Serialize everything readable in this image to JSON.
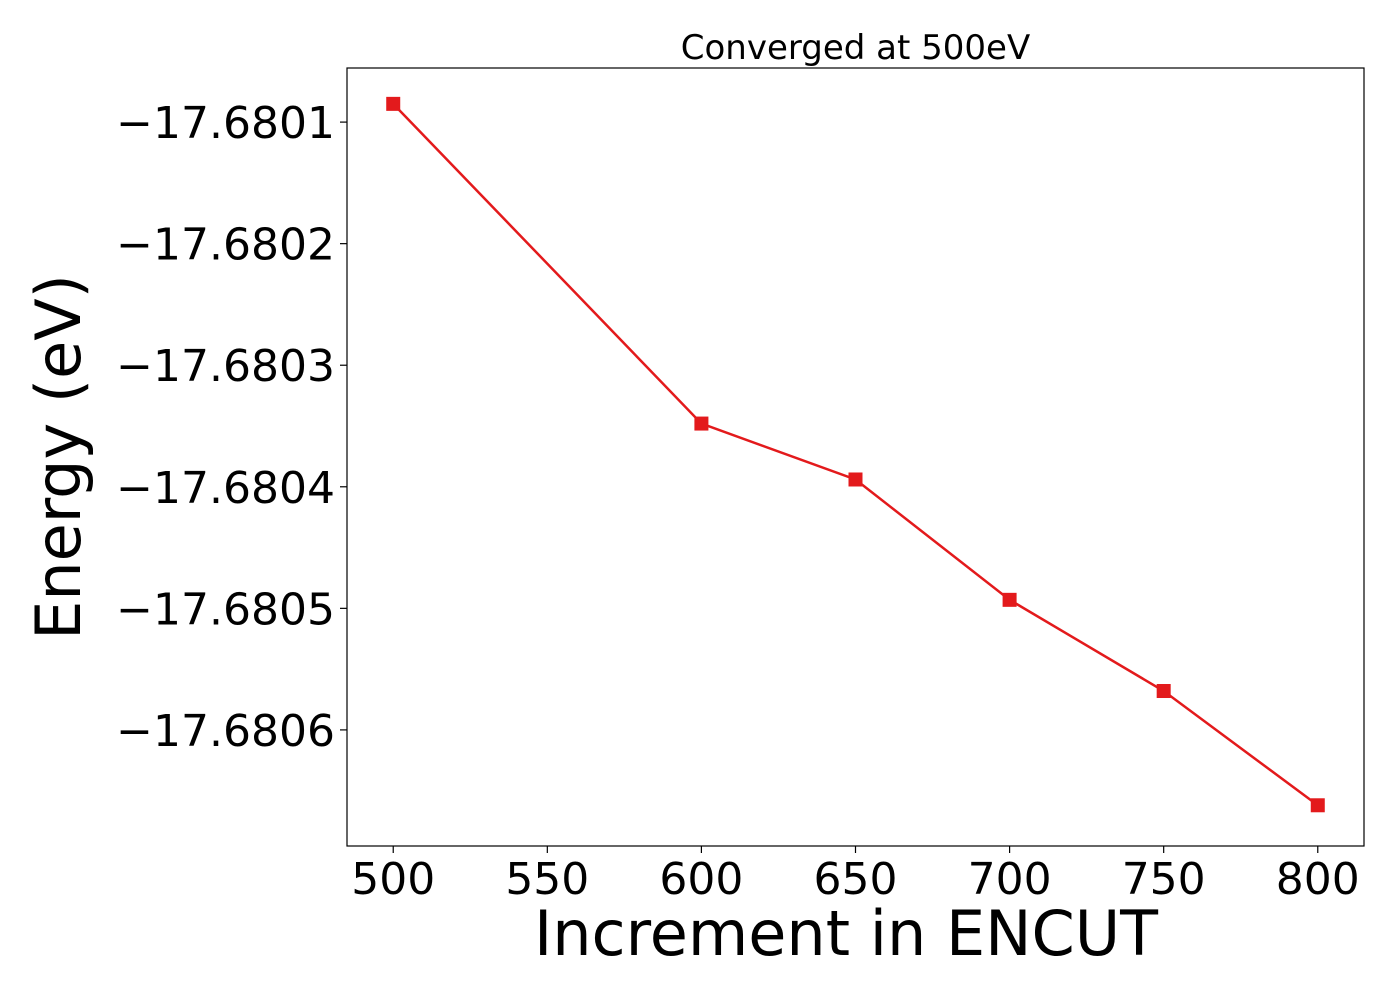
{
  "chart_data": {
    "type": "line",
    "title": "Converged at 500eV",
    "xlabel": "Increment in ENCUT",
    "ylabel": "Energy (eV)",
    "x": [
      500,
      600,
      650,
      700,
      750,
      800
    ],
    "series": [
      {
        "values": [
          -17.680085,
          -17.680348,
          -17.680394,
          -17.680493,
          -17.680568,
          -17.680662
        ],
        "color": "#e31a1c",
        "marker": "square"
      }
    ],
    "xlim": [
      485,
      815
    ],
    "ylim": [
      -17.6806955,
      -17.6800555
    ],
    "xticks": [
      500,
      550,
      600,
      650,
      700,
      750,
      800
    ],
    "xtick_labels": [
      "500",
      "550",
      "600",
      "650",
      "700",
      "750",
      "800"
    ],
    "yticks": [
      -17.6801,
      -17.6802,
      -17.6803,
      -17.6804,
      -17.6805,
      -17.6806
    ],
    "ytick_labels": [
      "−17.6801",
      "−17.6802",
      "−17.6803",
      "−17.6804",
      "−17.6805",
      "−17.6806"
    ],
    "grid": false,
    "legend": "none"
  }
}
